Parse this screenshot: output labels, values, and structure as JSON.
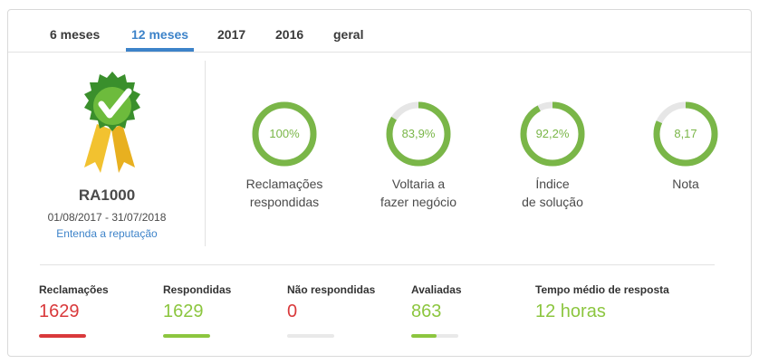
{
  "tabs": [
    {
      "label": "6 meses",
      "active": false
    },
    {
      "label": "12 meses",
      "active": true
    },
    {
      "label": "2017",
      "active": false
    },
    {
      "label": "2016",
      "active": false
    },
    {
      "label": "geral",
      "active": false
    }
  ],
  "reputation": {
    "brand": "RA1000",
    "period": "01/08/2017 - 31/07/2018",
    "link": "Entenda a reputação"
  },
  "metrics": [
    {
      "value_text": "100%",
      "fraction": 1.0,
      "label_line1": "Reclamações",
      "label_line2": "respondidas"
    },
    {
      "value_text": "83,9%",
      "fraction": 0.839,
      "label_line1": "Voltaria a",
      "label_line2": "fazer negócio"
    },
    {
      "value_text": "92,2%",
      "fraction": 0.922,
      "label_line1": "Índice",
      "label_line2": "de solução"
    },
    {
      "value_text": "8,17",
      "fraction": 0.817,
      "label_line1": "Nota",
      "label_line2": ""
    }
  ],
  "stats": [
    {
      "label": "Reclamações",
      "value": "1629",
      "color": "#d9393b",
      "fill": 1.0
    },
    {
      "label": "Respondidas",
      "value": "1629",
      "color": "#8cc63f",
      "fill": 1.0
    },
    {
      "label": "Não respondidas",
      "value": "0",
      "color": "#d9393b",
      "fill": 0.0
    },
    {
      "label": "Avaliadas",
      "value": "863",
      "color": "#8cc63f",
      "fill": 0.53
    },
    {
      "label": "Tempo médio de resposta",
      "value": "12 horas",
      "color": "#8cc63f",
      "fill": null
    }
  ],
  "colors": {
    "accent": "#3d83c9",
    "ring_green": "#7ab648",
    "ring_track": "#e6e6e6",
    "danger": "#d9393b",
    "success": "#8cc63f"
  }
}
